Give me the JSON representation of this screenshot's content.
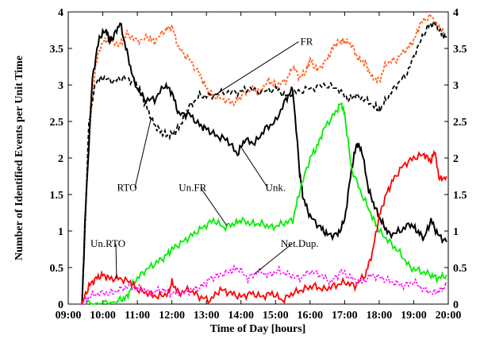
{
  "chart_data": {
    "type": "line",
    "title": "",
    "xlabel": "Time of Day [hours]",
    "ylabel": "Number of Identified Events per Unit Time",
    "xlim": [
      9.0,
      20.0
    ],
    "ylim": [
      0,
      4
    ],
    "x_ticks": [
      "09:00",
      "10:00",
      "11:00",
      "12:00",
      "13:00",
      "14:00",
      "15:00",
      "16:00",
      "17:00",
      "18:00",
      "19:00",
      "20:00"
    ],
    "y_ticks": [
      "0",
      "0.5",
      "1",
      "1.5",
      "2",
      "2.5",
      "3",
      "3.5",
      "4"
    ],
    "grid": false,
    "legend": "none",
    "series": [
      {
        "name": "FR",
        "color": "#ff6020",
        "dash": "3,2",
        "points": [
          [
            9.4,
            0.0
          ],
          [
            9.6,
            2.3
          ],
          [
            9.8,
            3.3
          ],
          [
            10.0,
            3.6
          ],
          [
            10.2,
            3.6
          ],
          [
            10.5,
            3.55
          ],
          [
            10.7,
            3.7
          ],
          [
            11.0,
            3.6
          ],
          [
            11.3,
            3.65
          ],
          [
            11.5,
            3.6
          ],
          [
            11.8,
            3.75
          ],
          [
            12.0,
            3.8
          ],
          [
            12.2,
            3.5
          ],
          [
            12.5,
            3.35
          ],
          [
            12.8,
            3.15
          ],
          [
            13.0,
            2.95
          ],
          [
            13.2,
            2.85
          ],
          [
            13.5,
            2.8
          ],
          [
            13.8,
            2.75
          ],
          [
            14.0,
            2.85
          ],
          [
            14.3,
            2.95
          ],
          [
            14.5,
            2.9
          ],
          [
            14.8,
            3.05
          ],
          [
            15.0,
            3.0
          ],
          [
            15.3,
            3.05
          ],
          [
            15.5,
            3.25
          ],
          [
            15.7,
            3.1
          ],
          [
            15.9,
            3.2
          ],
          [
            16.0,
            3.35
          ],
          [
            16.2,
            3.2
          ],
          [
            16.5,
            3.35
          ],
          [
            16.7,
            3.55
          ],
          [
            16.9,
            3.6
          ],
          [
            17.0,
            3.6
          ],
          [
            17.2,
            3.55
          ],
          [
            17.4,
            3.35
          ],
          [
            17.6,
            3.3
          ],
          [
            17.8,
            3.1
          ],
          [
            18.0,
            3.05
          ],
          [
            18.2,
            3.3
          ],
          [
            18.5,
            3.35
          ],
          [
            18.8,
            3.5
          ],
          [
            19.0,
            3.6
          ],
          [
            19.2,
            3.85
          ],
          [
            19.5,
            3.95
          ],
          [
            19.7,
            3.8
          ],
          [
            19.9,
            3.7
          ]
        ]
      },
      {
        "name": "RTO",
        "color": "#000000",
        "dash": "5,3",
        "points": [
          [
            9.4,
            0.0
          ],
          [
            9.6,
            2.5
          ],
          [
            9.8,
            3.05
          ],
          [
            10.0,
            3.1
          ],
          [
            10.3,
            3.05
          ],
          [
            10.6,
            3.1
          ],
          [
            10.9,
            3.05
          ],
          [
            11.1,
            2.9
          ],
          [
            11.3,
            2.65
          ],
          [
            11.5,
            2.45
          ],
          [
            11.7,
            2.35
          ],
          [
            11.9,
            2.3
          ],
          [
            12.1,
            2.35
          ],
          [
            12.3,
            2.5
          ],
          [
            12.5,
            2.7
          ],
          [
            12.8,
            2.85
          ],
          [
            13.1,
            2.85
          ],
          [
            13.5,
            2.9
          ],
          [
            13.9,
            2.9
          ],
          [
            14.2,
            2.95
          ],
          [
            14.6,
            2.9
          ],
          [
            15.0,
            2.95
          ],
          [
            15.3,
            2.85
          ],
          [
            15.6,
            2.9
          ],
          [
            16.0,
            2.95
          ],
          [
            16.4,
            3.0
          ],
          [
            16.8,
            2.95
          ],
          [
            17.1,
            2.8
          ],
          [
            17.3,
            2.85
          ],
          [
            17.6,
            2.8
          ],
          [
            17.9,
            2.7
          ],
          [
            18.0,
            2.65
          ],
          [
            18.2,
            2.8
          ],
          [
            18.5,
            3.0
          ],
          [
            18.8,
            3.15
          ],
          [
            19.1,
            3.5
          ],
          [
            19.4,
            3.8
          ],
          [
            19.6,
            3.85
          ],
          [
            19.8,
            3.7
          ],
          [
            19.95,
            3.65
          ]
        ]
      },
      {
        "name": "Unk.",
        "color": "#000000",
        "dash": "",
        "points": [
          [
            9.4,
            0.0
          ],
          [
            9.5,
            1.3
          ],
          [
            9.7,
            3.1
          ],
          [
            9.9,
            3.65
          ],
          [
            10.1,
            3.75
          ],
          [
            10.2,
            3.6
          ],
          [
            10.3,
            3.65
          ],
          [
            10.5,
            3.85
          ],
          [
            10.7,
            3.45
          ],
          [
            10.9,
            3.05
          ],
          [
            11.2,
            2.8
          ],
          [
            11.5,
            2.8
          ],
          [
            11.8,
            3.0
          ],
          [
            12.0,
            2.9
          ],
          [
            12.2,
            2.6
          ],
          [
            12.5,
            2.6
          ],
          [
            12.8,
            2.45
          ],
          [
            13.0,
            2.4
          ],
          [
            13.3,
            2.3
          ],
          [
            13.6,
            2.25
          ],
          [
            13.9,
            2.05
          ],
          [
            14.1,
            2.25
          ],
          [
            14.4,
            2.2
          ],
          [
            14.7,
            2.4
          ],
          [
            15.0,
            2.5
          ],
          [
            15.3,
            2.8
          ],
          [
            15.5,
            2.95
          ],
          [
            15.7,
            1.8
          ],
          [
            15.8,
            1.45
          ],
          [
            16.0,
            1.2
          ],
          [
            16.3,
            1.05
          ],
          [
            16.5,
            0.95
          ],
          [
            16.8,
            0.95
          ],
          [
            17.0,
            1.15
          ],
          [
            17.2,
            1.85
          ],
          [
            17.35,
            2.2
          ],
          [
            17.5,
            2.1
          ],
          [
            17.7,
            1.55
          ],
          [
            17.9,
            1.3
          ],
          [
            18.1,
            1.1
          ],
          [
            18.3,
            0.95
          ],
          [
            18.6,
            1.0
          ],
          [
            18.9,
            1.1
          ],
          [
            19.1,
            1.0
          ],
          [
            19.3,
            0.9
          ],
          [
            19.5,
            1.15
          ],
          [
            19.7,
            0.95
          ],
          [
            19.95,
            0.85
          ]
        ]
      },
      {
        "name": "Un.FR",
        "color": "#00ee00",
        "dash": "",
        "points": [
          [
            9.5,
            0.0
          ],
          [
            10.0,
            0.0
          ],
          [
            10.5,
            0.05
          ],
          [
            10.7,
            0.1
          ],
          [
            10.9,
            0.3
          ],
          [
            11.2,
            0.45
          ],
          [
            11.5,
            0.55
          ],
          [
            11.8,
            0.65
          ],
          [
            12.0,
            0.75
          ],
          [
            12.3,
            0.85
          ],
          [
            12.6,
            0.95
          ],
          [
            12.9,
            1.05
          ],
          [
            13.2,
            1.15
          ],
          [
            13.5,
            1.05
          ],
          [
            13.8,
            1.1
          ],
          [
            14.0,
            1.15
          ],
          [
            14.3,
            1.1
          ],
          [
            14.6,
            1.1
          ],
          [
            14.9,
            1.05
          ],
          [
            15.2,
            1.1
          ],
          [
            15.5,
            1.15
          ],
          [
            15.7,
            1.55
          ],
          [
            16.0,
            2.0
          ],
          [
            16.2,
            2.15
          ],
          [
            16.4,
            2.4
          ],
          [
            16.7,
            2.6
          ],
          [
            16.9,
            2.75
          ],
          [
            17.0,
            2.6
          ],
          [
            17.2,
            1.85
          ],
          [
            17.5,
            1.5
          ],
          [
            17.8,
            1.2
          ],
          [
            18.0,
            1.0
          ],
          [
            18.3,
            0.85
          ],
          [
            18.6,
            0.7
          ],
          [
            18.9,
            0.5
          ],
          [
            19.2,
            0.45
          ],
          [
            19.5,
            0.4
          ],
          [
            19.7,
            0.35
          ],
          [
            19.95,
            0.4
          ]
        ]
      },
      {
        "name": "Un.RTO",
        "color": "#ff0000",
        "dash": "",
        "points": [
          [
            9.4,
            0.0
          ],
          [
            9.6,
            0.25
          ],
          [
            9.8,
            0.35
          ],
          [
            10.0,
            0.4
          ],
          [
            10.2,
            0.35
          ],
          [
            10.5,
            0.35
          ],
          [
            10.8,
            0.3
          ],
          [
            11.0,
            0.2
          ],
          [
            11.3,
            0.15
          ],
          [
            11.6,
            0.1
          ],
          [
            11.9,
            0.15
          ],
          [
            12.0,
            0.3
          ],
          [
            12.2,
            0.15
          ],
          [
            12.5,
            0.2
          ],
          [
            12.8,
            0.1
          ],
          [
            13.1,
            0.05
          ],
          [
            13.4,
            0.2
          ],
          [
            13.7,
            0.15
          ],
          [
            14.0,
            0.1
          ],
          [
            14.3,
            0.15
          ],
          [
            14.6,
            0.1
          ],
          [
            14.9,
            0.15
          ],
          [
            15.2,
            0.05
          ],
          [
            15.5,
            0.15
          ],
          [
            15.8,
            0.2
          ],
          [
            16.1,
            0.25
          ],
          [
            16.4,
            0.2
          ],
          [
            16.7,
            0.25
          ],
          [
            17.0,
            0.3
          ],
          [
            17.3,
            0.25
          ],
          [
            17.6,
            0.4
          ],
          [
            17.8,
            0.7
          ],
          [
            18.0,
            1.2
          ],
          [
            18.2,
            1.5
          ],
          [
            18.4,
            1.7
          ],
          [
            18.7,
            1.9
          ],
          [
            19.0,
            2.0
          ],
          [
            19.3,
            2.05
          ],
          [
            19.5,
            1.95
          ],
          [
            19.6,
            2.1
          ],
          [
            19.75,
            1.7
          ],
          [
            19.95,
            1.75
          ]
        ]
      },
      {
        "name": "Net.Dup.",
        "color": "#ff00ff",
        "dash": "2,2",
        "points": [
          [
            9.4,
            0.0
          ],
          [
            9.6,
            0.1
          ],
          [
            9.9,
            0.15
          ],
          [
            10.2,
            0.15
          ],
          [
            10.5,
            0.2
          ],
          [
            10.8,
            0.25
          ],
          [
            11.1,
            0.2
          ],
          [
            11.4,
            0.15
          ],
          [
            11.7,
            0.2
          ],
          [
            12.0,
            0.15
          ],
          [
            12.3,
            0.15
          ],
          [
            12.6,
            0.2
          ],
          [
            12.9,
            0.25
          ],
          [
            13.1,
            0.35
          ],
          [
            13.4,
            0.4
          ],
          [
            13.7,
            0.45
          ],
          [
            13.9,
            0.5
          ],
          [
            14.2,
            0.35
          ],
          [
            14.5,
            0.45
          ],
          [
            14.8,
            0.4
          ],
          [
            15.1,
            0.45
          ],
          [
            15.4,
            0.4
          ],
          [
            15.7,
            0.35
          ],
          [
            16.0,
            0.45
          ],
          [
            16.3,
            0.4
          ],
          [
            16.6,
            0.3
          ],
          [
            16.9,
            0.45
          ],
          [
            17.2,
            0.35
          ],
          [
            17.5,
            0.3
          ],
          [
            17.8,
            0.4
          ],
          [
            18.1,
            0.35
          ],
          [
            18.4,
            0.3
          ],
          [
            18.7,
            0.25
          ],
          [
            19.0,
            0.3
          ],
          [
            19.3,
            0.2
          ],
          [
            19.6,
            0.15
          ],
          [
            19.8,
            0.2
          ],
          [
            19.95,
            0.25
          ]
        ]
      }
    ],
    "annotations": [
      {
        "text": "FR",
        "label_x": 15.9,
        "label_y": 3.55
      },
      {
        "text": "RTO",
        "label_x": 10.7,
        "label_y": 1.55
      },
      {
        "text": "Unk.",
        "label_x": 15.0,
        "label_y": 1.55
      },
      {
        "text": "Un.FR",
        "label_x": 12.6,
        "label_y": 1.55
      },
      {
        "text": "Un.RTO",
        "label_x": 10.15,
        "label_y": 0.78
      },
      {
        "text": "Net.Dup.",
        "label_x": 15.7,
        "label_y": 0.78
      }
    ]
  }
}
